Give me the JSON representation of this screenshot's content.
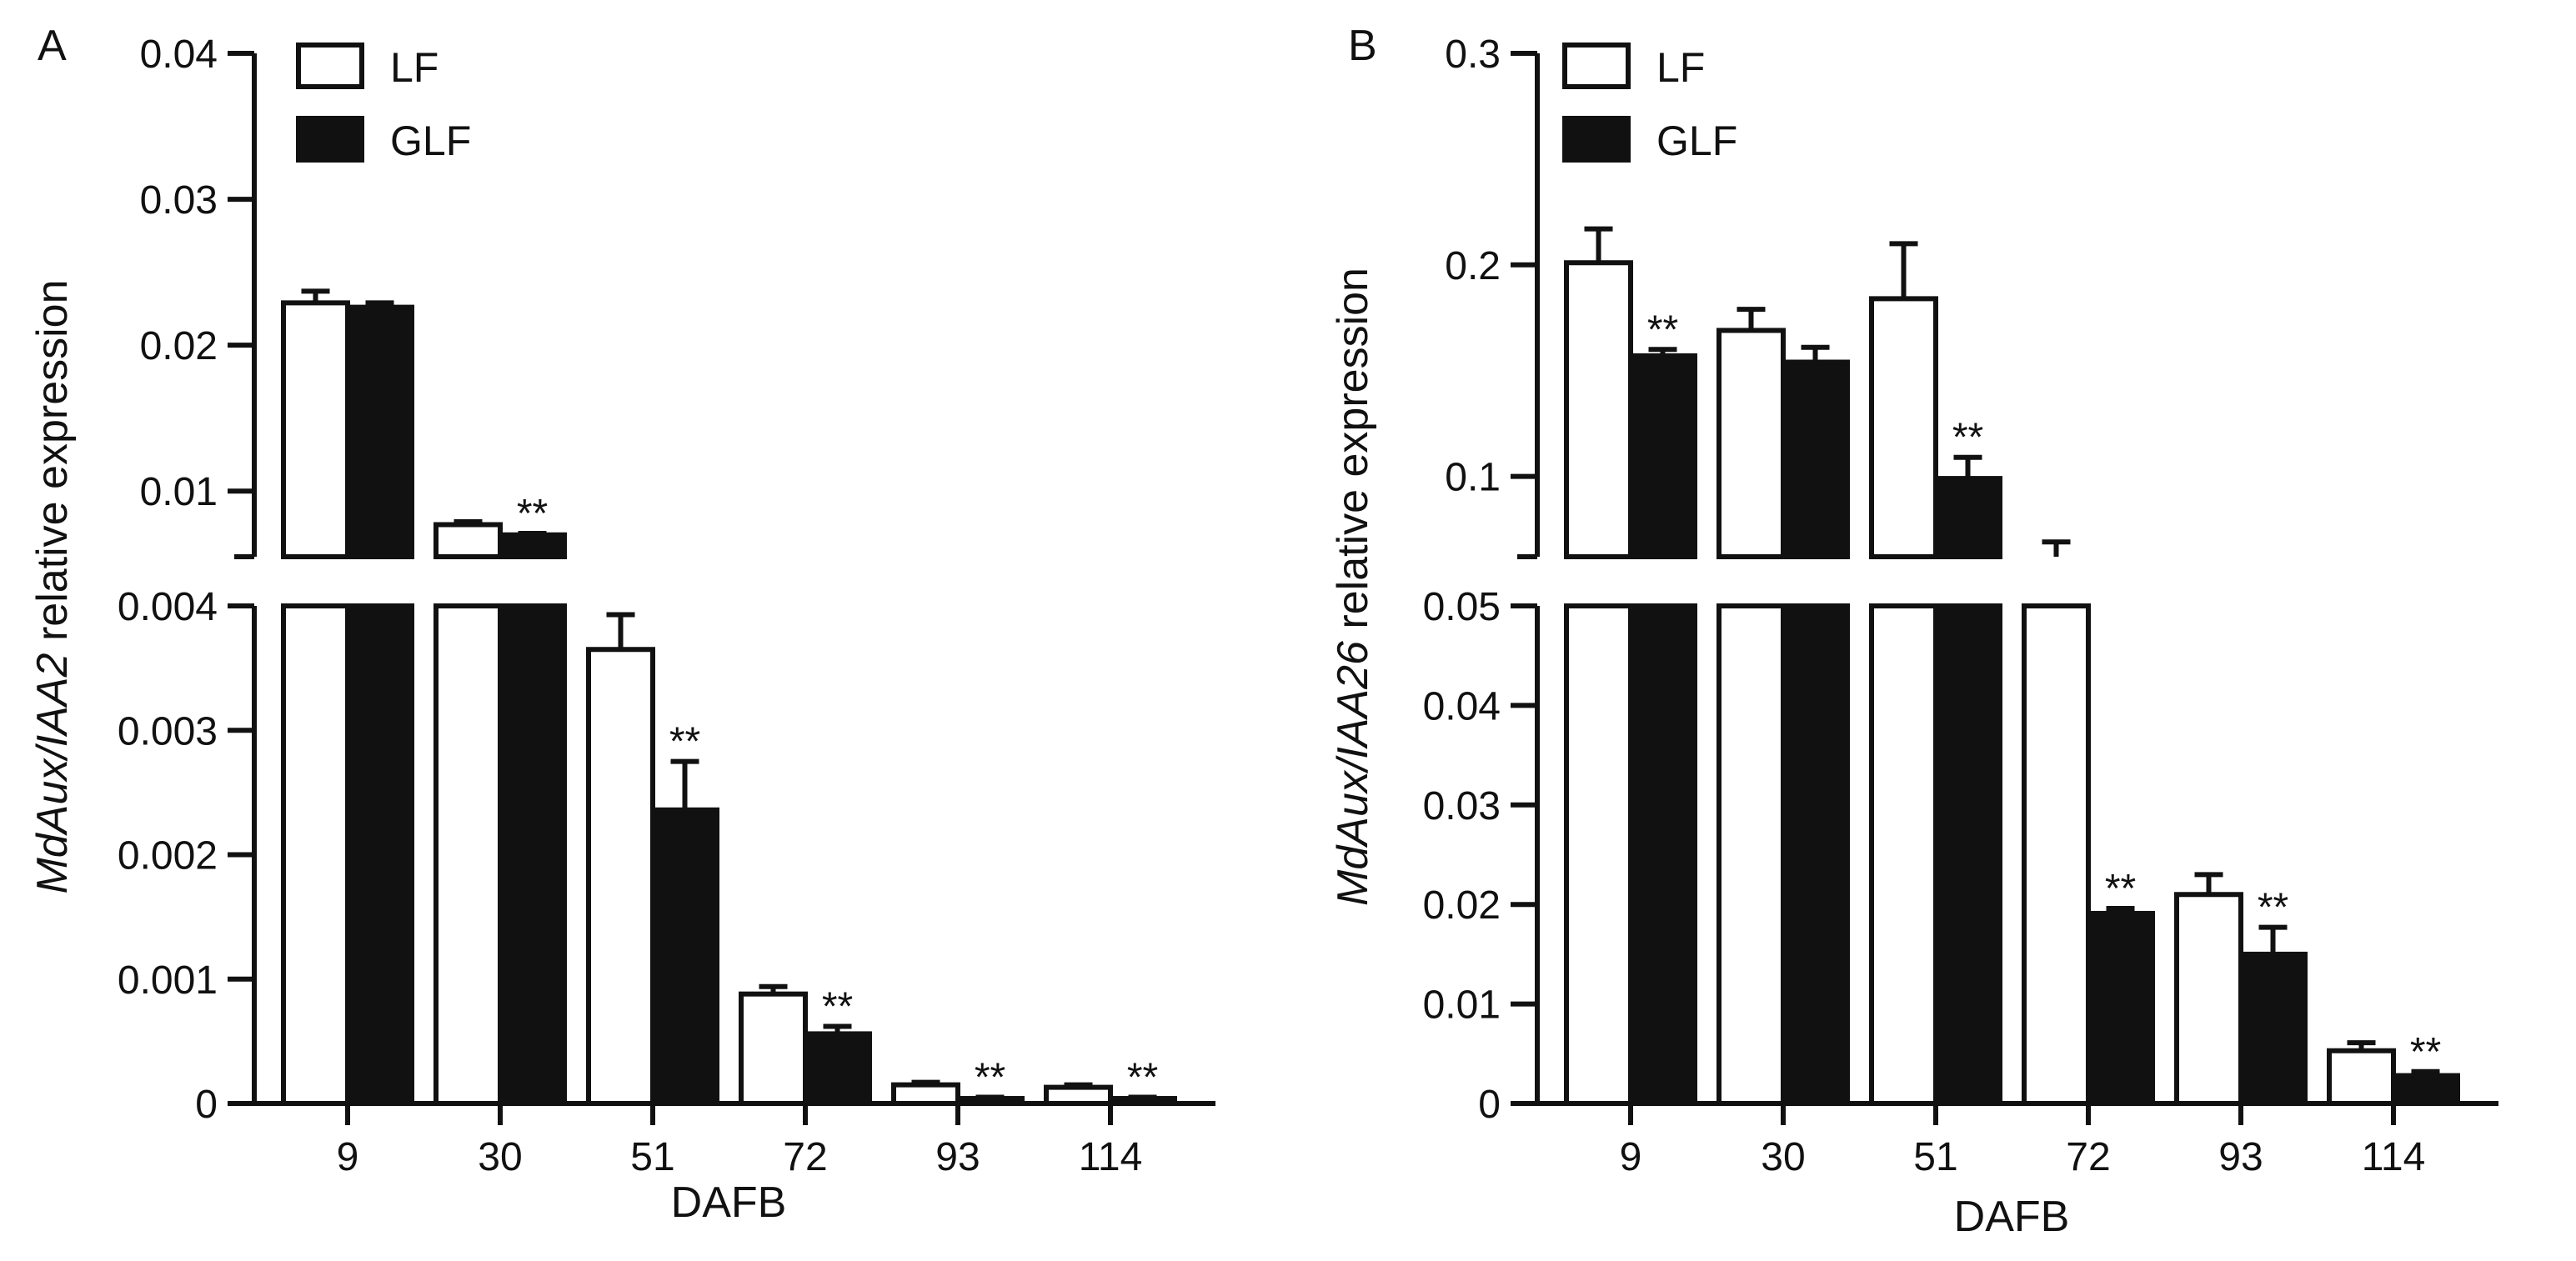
{
  "chart_data": [
    {
      "panel": "A",
      "type": "bar",
      "xlabel": "DAFB",
      "ylabel": {
        "gene": "MdAux/IAA2",
        "rest": " relative expression"
      },
      "categories": [
        "9",
        "30",
        "51",
        "72",
        "93",
        "114"
      ],
      "axis_break": {
        "lower_range": [
          0,
          0.004
        ],
        "upper_range": [
          0.0055,
          0.04
        ],
        "lower_ticks": [
          "0",
          "0.001",
          "0.002",
          "0.003",
          "0.004"
        ],
        "upper_ticks": [
          "0.01",
          "0.02",
          "0.03",
          "0.04"
        ]
      },
      "series": [
        {
          "name": "LF",
          "color": "#ffffff",
          "values": [
            0.0229,
            0.0077,
            0.00365,
            0.00088,
            0.00015,
            0.00013
          ],
          "errors": [
            0.0008,
            0.0002,
            0.00028,
            6e-05,
            2e-05,
            2e-05
          ]
        },
        {
          "name": "GLF",
          "color": "#111111",
          "values": [
            0.0226,
            0.007,
            0.00236,
            0.00056,
            4e-05,
            4e-05
          ],
          "errors": [
            0.0003,
            0.0001,
            0.00039,
            6e-05,
            1e-05,
            1e-05
          ]
        }
      ],
      "significance": [
        "",
        "**",
        "**",
        "**",
        "**",
        "**"
      ]
    },
    {
      "panel": "B",
      "type": "bar",
      "xlabel": "DAFB",
      "ylabel": {
        "gene": "MdAux/IAA26",
        "rest": " relative expression"
      },
      "categories": [
        "9",
        "30",
        "51",
        "72",
        "93",
        "114"
      ],
      "axis_break": {
        "lower_range": [
          0,
          0.05
        ],
        "upper_range": [
          0.062,
          0.3
        ],
        "lower_ticks": [
          "0",
          "0.01",
          "0.02",
          "0.03",
          "0.04",
          "0.05"
        ],
        "upper_ticks": [
          "0.1",
          "0.2",
          "0.3"
        ]
      },
      "series": [
        {
          "name": "LF",
          "color": "#ffffff",
          "values": [
            0.201,
            0.169,
            0.184,
            0.058,
            0.021,
            0.0053
          ],
          "errors": [
            0.016,
            0.01,
            0.026,
            0.011,
            0.002,
            0.0008
          ]
        },
        {
          "name": "GLF",
          "color": "#111111",
          "values": [
            0.157,
            0.154,
            0.099,
            0.0191,
            0.015,
            0.0028
          ],
          "errors": [
            0.003,
            0.007,
            0.01,
            0.0005,
            0.0027,
            0.0004
          ]
        }
      ],
      "significance": [
        "**",
        "",
        "**",
        "**",
        "**",
        "**"
      ]
    }
  ]
}
